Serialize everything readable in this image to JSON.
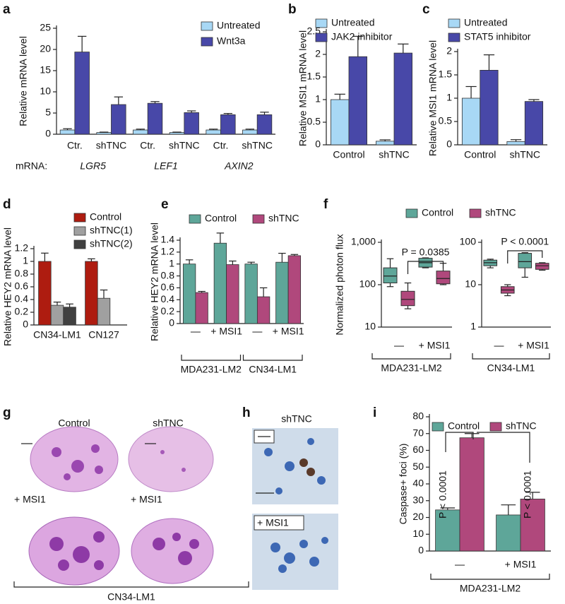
{
  "panel_letters": [
    "a",
    "b",
    "c",
    "d",
    "e",
    "f",
    "g",
    "h",
    "i"
  ],
  "chart_data": [
    {
      "type": "bar",
      "y_label": "Relative mRNA level",
      "x_row_label": "mRNA:",
      "groups": [
        {
          "label": "LGR5",
          "categories": [
            "Ctr.",
            "shTNC"
          ]
        },
        {
          "label": "LEF1",
          "categories": [
            "Ctr.",
            "shTNC"
          ]
        },
        {
          "label": "AXIN2",
          "categories": [
            "Ctr.",
            "shTNC"
          ]
        }
      ],
      "series": [
        {
          "name": "Untreated",
          "color": "#a8d8f5",
          "values": [
            1.0,
            0.4,
            1.0,
            0.4,
            1.0,
            1.0
          ],
          "errors": [
            0.3,
            0.1,
            0.2,
            0.1,
            0.2,
            0.2
          ]
        },
        {
          "name": "Wnt3a",
          "color": "#4848a8",
          "values": [
            19.4,
            7.0,
            7.3,
            5.1,
            4.6,
            4.6
          ],
          "errors": [
            3.7,
            1.8,
            0.4,
            0.4,
            0.3,
            0.6
          ]
        }
      ],
      "ylim": [
        0,
        25
      ],
      "yticks": [
        0,
        5,
        10,
        15,
        20,
        25
      ]
    },
    {
      "type": "bar",
      "y_label": "Relative MSI1 mRNA level",
      "categories": [
        "Control",
        "shTNC"
      ],
      "series": [
        {
          "name": "Untreated",
          "color": "#a8d8f5",
          "values": [
            1.0,
            0.08
          ],
          "errors": [
            0.12,
            0.03
          ]
        },
        {
          "name": "JAK2 inhibitor",
          "color": "#4848a8",
          "values": [
            1.95,
            2.03
          ],
          "errors": [
            0.45,
            0.2
          ]
        }
      ],
      "ylim": [
        0,
        2.5
      ],
      "yticks": [
        0,
        0.5,
        1,
        1.5,
        2,
        2.5
      ]
    },
    {
      "type": "bar",
      "y_label": "Relative MSI1 mRNA level",
      "categories": [
        "Control",
        "shTNC"
      ],
      "series": [
        {
          "name": "Untreated",
          "color": "#a8d8f5",
          "values": [
            1.0,
            0.07
          ],
          "errors": [
            0.25,
            0.04
          ]
        },
        {
          "name": "STAT5 inhibitor",
          "color": "#4848a8",
          "values": [
            1.6,
            0.93
          ],
          "errors": [
            0.33,
            0.04
          ]
        }
      ],
      "ylim": [
        0,
        2
      ],
      "yticks": [
        0,
        0.5,
        1,
        1.5,
        2
      ]
    },
    {
      "type": "bar",
      "y_label": "Relative HEY2 mRNA level",
      "categories": [
        "CN34-LM1",
        "CN127"
      ],
      "series": [
        {
          "name": "Control",
          "color": "#ae1c10",
          "values": [
            1.0,
            1.0
          ],
          "errors": [
            0.13,
            0.04
          ]
        },
        {
          "name": "shTNC(1)",
          "color": "#a0a0a0",
          "values": [
            0.31,
            0.42
          ],
          "errors": [
            0.05,
            0.13
          ]
        },
        {
          "name": "shTNC(2)",
          "color": "#404040",
          "values": [
            0.28,
            null
          ],
          "errors": [
            0.05,
            null
          ]
        }
      ],
      "ylim": [
        0,
        1.2
      ],
      "yticks": [
        0,
        0.2,
        0.4,
        0.6,
        0.8,
        1,
        1.2
      ]
    },
    {
      "type": "bar",
      "y_label": "Relative HEY2 mRNA level",
      "groups": [
        {
          "label": "MDA231-LM2",
          "categories": [
            "—",
            "+ MSI1"
          ]
        },
        {
          "label": "CN34-LM1",
          "categories": [
            "—",
            "+ MSI1"
          ]
        }
      ],
      "series": [
        {
          "name": "Control",
          "color": "#5ea699",
          "values": [
            1.0,
            1.35,
            1.0,
            1.03
          ],
          "errors": [
            0.07,
            0.17,
            0.03,
            0.15
          ]
        },
        {
          "name": "shTNC",
          "color": "#b0487c",
          "values": [
            0.52,
            0.99,
            0.45,
            1.14
          ],
          "errors": [
            0.02,
            0.06,
            0.15,
            0.02
          ]
        }
      ],
      "ylim": [
        0,
        1.4
      ],
      "yticks": [
        0,
        0.2,
        0.4,
        0.6,
        0.8,
        1,
        1.2,
        1.4
      ]
    },
    {
      "type": "box",
      "y_label": "Normalized photon flux",
      "log_scale": true,
      "series": [
        {
          "name": "Control",
          "color": "#5ea699"
        },
        {
          "name": "shTNC",
          "color": "#b0487c"
        }
      ],
      "subplots": [
        {
          "ylim": [
            10,
            1000
          ],
          "yticks": [
            10,
            100,
            {
              "value": 1000,
              "label": "1,000"
            }
          ],
          "group_label": "MDA231-LM2",
          "categories": [
            "—",
            "+ MSI1"
          ],
          "boxes": [
            [
              [
                90,
                110,
                160,
                250,
                410
              ],
              [
                250,
                260,
                330,
                420,
                430
              ]
            ],
            [
              [
                27,
                32,
                45,
                70,
                110
              ],
              [
                100,
                105,
                140,
                210,
                320
              ]
            ]
          ],
          "annotation": "P = 0.0385"
        },
        {
          "ylim": [
            1,
            100
          ],
          "yticks": [
            1,
            10,
            100
          ],
          "group_label": "CN34-LM1",
          "categories": [
            "—",
            "+ MSI1"
          ],
          "boxes": [
            [
              [
                25,
                28,
                33,
                38,
                40
              ],
              [
                15,
                25,
                35,
                55,
                57
              ]
            ],
            [
              [
                5.5,
                6.3,
                7.5,
                9,
                10
              ],
              [
                22,
                23,
                28,
                32,
                33
              ]
            ]
          ],
          "annotation": "P < 0.0001"
        }
      ]
    },
    {
      "type": "bar",
      "y_label": "Caspase+ foci (%)",
      "groups": [
        {
          "label": "MDA231-LM2",
          "categories": [
            "—",
            "+ MSI1"
          ]
        }
      ],
      "series": [
        {
          "name": "Control",
          "color": "#5ea699",
          "values": [
            24.5,
            21.5
          ],
          "errors": [
            1.2,
            6
          ]
        },
        {
          "name": "shTNC",
          "color": "#b0487c",
          "values": [
            67.5,
            31
          ],
          "errors": [
            2.5,
            4
          ]
        }
      ],
      "ylim": [
        0,
        80
      ],
      "yticks": [
        0,
        10,
        20,
        30,
        40,
        50,
        60,
        70,
        80
      ],
      "annotations": [
        "P < 0.0001",
        "P < 0.0001"
      ]
    }
  ],
  "images": {
    "g": {
      "column_labels": [
        "Control",
        "shTNC"
      ],
      "row_labels": [
        "+ MSI1",
        "+ MSI1"
      ],
      "caption": "CN34-LM1"
    },
    "h": {
      "labels": [
        "shTNC",
        "+ MSI1"
      ]
    }
  }
}
